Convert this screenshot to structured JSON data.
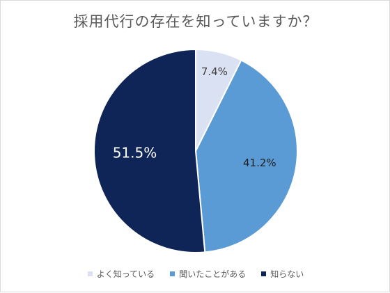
{
  "chart_data": {
    "type": "pie",
    "title": "採用代行の存在を知っていますか？",
    "slices": [
      {
        "name": "よく知っている",
        "value": 7.4,
        "label": "7.4%",
        "color": "#dae1f2",
        "label_color": "#404040"
      },
      {
        "name": "聞いたことがある",
        "value": 41.2,
        "label": "41.2%",
        "color": "#5b9bd5",
        "label_color": "#1f1f1f"
      },
      {
        "name": "知らない",
        "value": 51.5,
        "label": "51.5%",
        "color": "#0f2557",
        "label_color": "#ffffff"
      }
    ],
    "legend_position": "bottom"
  }
}
